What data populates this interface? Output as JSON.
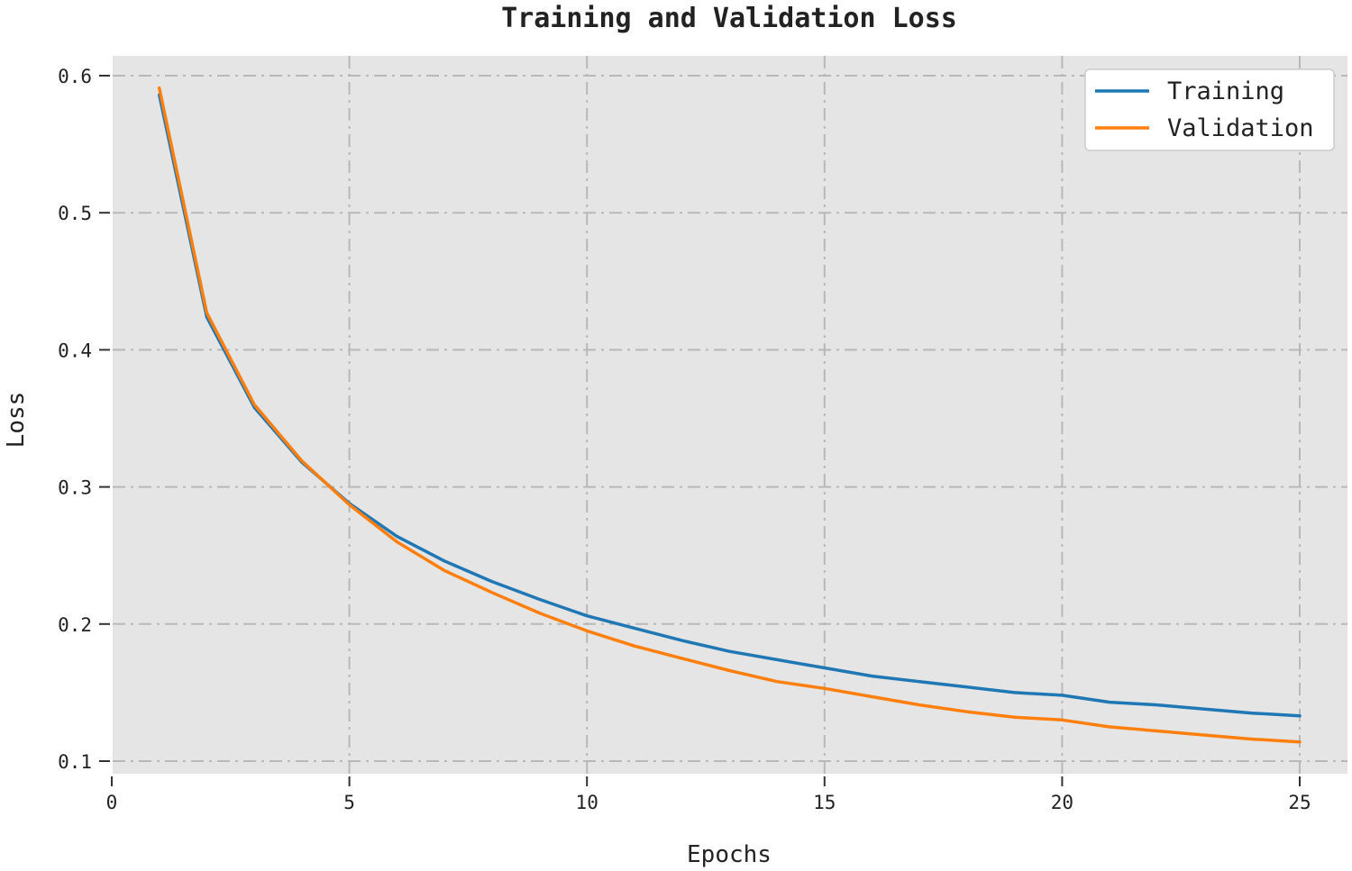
{
  "chart_data": {
    "type": "line",
    "title": "Training and Validation Loss",
    "xlabel": "Epochs",
    "ylabel": "Loss",
    "xlim": [
      0,
      25
    ],
    "ylim": [
      0.1,
      0.6
    ],
    "xticks": [
      0,
      5,
      10,
      15,
      20,
      25
    ],
    "xtick_labels": [
      "0",
      "5",
      "10",
      "15",
      "20",
      "25"
    ],
    "yticks": [
      0.1,
      0.2,
      0.3,
      0.4,
      0.5,
      0.6
    ],
    "ytick_labels": [
      "0.1",
      "0.2",
      "0.3",
      "0.4",
      "0.5",
      "0.6"
    ],
    "grid": true,
    "legend_position": "top-right",
    "x": [
      1,
      2,
      3,
      4,
      5,
      6,
      7,
      8,
      9,
      10,
      11,
      12,
      13,
      14,
      15,
      16,
      17,
      18,
      19,
      20,
      21,
      22,
      23,
      24,
      25
    ],
    "series": [
      {
        "name": "Training",
        "color": "#1f77b4",
        "values": [
          0.586,
          0.424,
          0.358,
          0.318,
          0.288,
          0.264,
          0.246,
          0.231,
          0.218,
          0.206,
          0.197,
          0.188,
          0.18,
          0.174,
          0.168,
          0.162,
          0.158,
          0.154,
          0.15,
          0.148,
          0.143,
          0.141,
          0.138,
          0.135,
          0.133
        ]
      },
      {
        "name": "Validation",
        "color": "#ff7f0e",
        "values": [
          0.591,
          0.427,
          0.36,
          0.319,
          0.287,
          0.26,
          0.239,
          0.223,
          0.208,
          0.195,
          0.184,
          0.175,
          0.166,
          0.158,
          0.153,
          0.147,
          0.141,
          0.136,
          0.132,
          0.13,
          0.125,
          0.122,
          0.119,
          0.116,
          0.114
        ]
      }
    ]
  },
  "colors": {
    "plot_background": "#e5e5e5",
    "grid": "#b8b8b8",
    "legend_background": "#ffffff"
  }
}
